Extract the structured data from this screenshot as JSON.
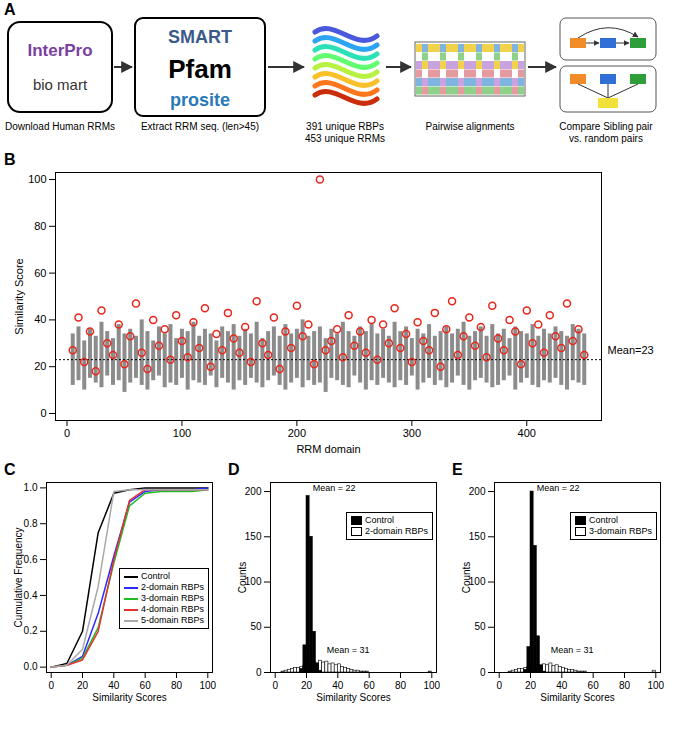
{
  "diagram": {
    "label": "A",
    "steps": [
      {
        "logos": [
          "InterPro",
          "bio mart"
        ],
        "caption": [
          "Download Human RRMs"
        ]
      },
      {
        "logos": [
          "SMART",
          "Pfam",
          "prosite"
        ],
        "caption": [
          "Extract RRM seq. (len>45)"
        ]
      },
      {
        "caption": [
          "391 unique RBPs",
          "453 unique RRMs"
        ]
      },
      {
        "caption": [
          "Pairwise alignments"
        ]
      },
      {
        "caption": [
          "Compare Sibling pair",
          "vs. random pairs"
        ]
      }
    ]
  },
  "chart_data": [
    {
      "panel": "B",
      "type": "range",
      "xlabel": "RRM domain",
      "ylabel": "Similarity Score",
      "xlim": [
        -10,
        465
      ],
      "xticks": [
        0,
        100,
        200,
        300,
        400
      ],
      "ylim": [
        -3,
        103
      ],
      "yticks": [
        0,
        20,
        40,
        60,
        80,
        100
      ],
      "x": [
        5,
        10,
        15,
        20,
        25,
        30,
        35,
        40,
        45,
        50,
        55,
        60,
        65,
        70,
        75,
        80,
        85,
        90,
        95,
        100,
        105,
        110,
        115,
        120,
        125,
        130,
        135,
        140,
        145,
        150,
        155,
        160,
        165,
        170,
        175,
        180,
        185,
        190,
        195,
        200,
        205,
        210,
        215,
        220,
        225,
        230,
        235,
        240,
        245,
        250,
        255,
        260,
        265,
        270,
        275,
        280,
        285,
        290,
        295,
        300,
        305,
        310,
        315,
        320,
        325,
        330,
        335,
        340,
        345,
        350,
        355,
        360,
        365,
        370,
        375,
        380,
        385,
        390,
        395,
        400,
        405,
        410,
        415,
        420,
        425,
        430,
        435,
        440,
        445,
        450
      ],
      "series": [
        {
          "type": "range",
          "color": "#8c8c8c",
          "low": [
            12,
            14,
            10,
            15,
            13,
            11,
            16,
            12,
            14,
            9,
            13,
            15,
            12,
            10,
            14,
            16,
            11,
            13,
            12,
            15,
            10,
            14,
            13,
            12,
            16,
            11,
            15,
            13,
            10,
            14,
            12,
            15,
            13,
            11,
            14,
            16,
            12,
            10,
            13,
            15,
            11,
            14,
            12,
            13,
            9,
            15,
            14,
            12,
            11,
            16,
            13,
            10,
            14,
            12,
            15,
            13,
            11,
            14,
            12,
            16,
            10,
            13,
            15,
            12,
            14,
            11,
            13,
            16,
            12,
            10,
            14,
            15,
            13,
            11,
            12,
            14,
            16,
            10,
            13,
            15,
            12,
            11,
            14,
            13,
            15,
            12,
            10,
            14,
            13,
            12
          ],
          "high": [
            34,
            37,
            31,
            36,
            33,
            39,
            35,
            32,
            38,
            34,
            36,
            33,
            40,
            35,
            31,
            37,
            34,
            38,
            32,
            36,
            35,
            39,
            33,
            36,
            34,
            31,
            37,
            35,
            38,
            33,
            36,
            34,
            39,
            32,
            35,
            37,
            33,
            38,
            34,
            36,
            40,
            33,
            35,
            37,
            32,
            36,
            34,
            39,
            35,
            33,
            37,
            35,
            38,
            34,
            36,
            33,
            39,
            35,
            37,
            32,
            36,
            34,
            38,
            33,
            35,
            37,
            34,
            36,
            39,
            33,
            35,
            37,
            33,
            38,
            34,
            36,
            32,
            37,
            35,
            34,
            38,
            33,
            36,
            34,
            37,
            35,
            33,
            38,
            36,
            34
          ]
        },
        {
          "type": "scatter",
          "marker": "circle",
          "color": "#e8261c",
          "values": [
            27,
            41,
            22,
            35,
            18,
            44,
            30,
            25,
            38,
            21,
            33,
            47,
            26,
            19,
            40,
            29,
            36,
            23,
            42,
            31,
            24,
            39,
            28,
            45,
            20,
            34,
            27,
            43,
            32,
            26,
            37,
            22,
            48,
            30,
            25,
            41,
            19,
            35,
            28,
            46,
            33,
            38,
            21,
            100,
            27,
            31,
            36,
            24,
            42,
            29,
            35,
            26,
            40,
            23,
            38,
            30,
            45,
            28,
            34,
            22,
            39,
            31,
            27,
            43,
            20,
            36,
            48,
            25,
            33,
            41,
            29,
            37,
            24,
            46,
            32,
            27,
            40,
            35,
            21,
            44,
            30,
            38,
            26,
            42,
            33,
            28,
            47,
            31,
            36,
            25
          ]
        }
      ],
      "mean": {
        "value": 23,
        "label": "Mean=23"
      }
    },
    {
      "panel": "C",
      "type": "line",
      "xlabel": "Similarity Scores",
      "ylabel": "Cumulative Frequency",
      "xlim": [
        -3,
        103
      ],
      "xticks": [
        0,
        20,
        40,
        60,
        80,
        100
      ],
      "ylim": [
        -0.03,
        1.03
      ],
      "yticks": [
        {
          "value": 0,
          "label": "0.0"
        },
        {
          "value": 0.2,
          "label": "0.2"
        },
        {
          "value": 0.4,
          "label": "0.4"
        },
        {
          "value": 0.6,
          "label": "0.6"
        },
        {
          "value": 0.8,
          "label": "0.8"
        },
        {
          "value": 1,
          "label": "1.0"
        }
      ],
      "legend": "right",
      "x": [
        0,
        10,
        20,
        30,
        40,
        50,
        60,
        70,
        80,
        90,
        100
      ],
      "series": [
        {
          "name": "Control",
          "color": "#000000",
          "values": [
            0,
            0.02,
            0.2,
            0.75,
            0.97,
            0.99,
            1,
            1,
            1,
            1,
            1
          ]
        },
        {
          "name": "2-domain RBPs",
          "color": "#2b2bff",
          "values": [
            0,
            0.01,
            0.06,
            0.3,
            0.62,
            0.92,
            0.98,
            0.99,
            0.99,
            0.99,
            1
          ]
        },
        {
          "name": "3-domain RBPs",
          "color": "#22bb22",
          "values": [
            0,
            0.01,
            0.05,
            0.22,
            0.58,
            0.9,
            0.97,
            0.98,
            0.98,
            0.98,
            0.99
          ]
        },
        {
          "name": "4-domain RBPs",
          "color": "#e83030",
          "values": [
            0,
            0.01,
            0.04,
            0.2,
            0.6,
            0.93,
            0.99,
            0.99,
            0.99,
            0.99,
            0.99
          ]
        },
        {
          "name": "5-domain RBPs",
          "color": "#aaaaaa",
          "values": [
            0,
            0.01,
            0.1,
            0.45,
            0.98,
            0.99,
            0.99,
            0.99,
            0.99,
            0.99,
            0.99
          ]
        }
      ]
    },
    {
      "panel": "D",
      "type": "histogram",
      "xlabel": "Similarity Scores",
      "ylabel": "Counts",
      "xlim": [
        -3,
        103
      ],
      "xticks": [
        0,
        20,
        40,
        60,
        80,
        100
      ],
      "ylim": [
        0,
        210
      ],
      "yticks": [
        0,
        50,
        100,
        150,
        200
      ],
      "legend": "top-right",
      "bins": [
        0,
        2,
        4,
        6,
        8,
        10,
        12,
        14,
        16,
        18,
        20,
        22,
        24,
        26,
        28,
        30,
        32,
        34,
        36,
        38,
        40,
        42,
        44,
        46,
        48,
        50,
        52,
        54,
        56,
        58,
        60,
        62,
        64,
        66,
        68,
        70,
        72,
        74,
        76,
        78,
        80,
        82,
        84,
        86,
        88,
        90,
        92,
        94,
        96,
        98,
        100
      ],
      "series": [
        {
          "name": "Control",
          "color": "#000000",
          "values": [
            0,
            0,
            0,
            0,
            0,
            0,
            0,
            0,
            4,
            30,
            195,
            150,
            45,
            10,
            2,
            0,
            0,
            0,
            0,
            0,
            0,
            0,
            0,
            0,
            0,
            0,
            0,
            0,
            0,
            0,
            0,
            0,
            0,
            0,
            0,
            0,
            0,
            0,
            0,
            0,
            0,
            0,
            0,
            0,
            0,
            0,
            0,
            0,
            0,
            0
          ]
        },
        {
          "name": "2-domain RBPs",
          "color": "#ffffff",
          "values": [
            0,
            0,
            1,
            2,
            3,
            4,
            5,
            5,
            6,
            8,
            10,
            9,
            12,
            10,
            13,
            11,
            12,
            9,
            10,
            8,
            9,
            6,
            5,
            4,
            3,
            2,
            2,
            1,
            1,
            1,
            0,
            0,
            0,
            0,
            0,
            0,
            0,
            0,
            0,
            0,
            0,
            0,
            0,
            0,
            0,
            0,
            0,
            0,
            0,
            1
          ]
        }
      ],
      "annotations": [
        {
          "text": "Mean = 22",
          "x": 22,
          "y": 200
        },
        {
          "text": "Mean = 31",
          "x": 31,
          "y": 20
        }
      ]
    },
    {
      "panel": "E",
      "type": "histogram",
      "xlabel": "Similarity Scores",
      "ylabel": "Counts",
      "xlim": [
        -3,
        103
      ],
      "xticks": [
        0,
        20,
        40,
        60,
        80,
        100
      ],
      "ylim": [
        0,
        210
      ],
      "yticks": [
        0,
        50,
        100,
        150,
        200
      ],
      "legend": "top-right",
      "bins": [
        0,
        2,
        4,
        6,
        8,
        10,
        12,
        14,
        16,
        18,
        20,
        22,
        24,
        26,
        28,
        30,
        32,
        34,
        36,
        38,
        40,
        42,
        44,
        46,
        48,
        50,
        52,
        54,
        56,
        58,
        60,
        62,
        64,
        66,
        68,
        70,
        72,
        74,
        76,
        78,
        80,
        82,
        84,
        86,
        88,
        90,
        92,
        94,
        96,
        98,
        100
      ],
      "series": [
        {
          "name": "Control",
          "color": "#000000",
          "values": [
            0,
            0,
            0,
            0,
            0,
            0,
            0,
            0,
            3,
            28,
            200,
            140,
            40,
            8,
            1,
            0,
            0,
            0,
            0,
            0,
            0,
            0,
            0,
            0,
            0,
            0,
            0,
            0,
            0,
            0,
            0,
            0,
            0,
            0,
            0,
            0,
            0,
            0,
            0,
            0,
            0,
            0,
            0,
            0,
            0,
            0,
            0,
            0,
            0,
            0
          ]
        },
        {
          "name": "3-domain RBPs",
          "color": "#ffffff",
          "values": [
            0,
            0,
            0,
            1,
            2,
            3,
            4,
            4,
            5,
            6,
            7,
            6,
            8,
            7,
            9,
            8,
            10,
            7,
            8,
            6,
            5,
            4,
            3,
            3,
            2,
            1,
            1,
            1,
            0,
            0,
            0,
            0,
            0,
            0,
            0,
            0,
            0,
            0,
            0,
            0,
            0,
            0,
            0,
            0,
            0,
            0,
            0,
            0,
            0,
            2
          ]
        }
      ],
      "annotations": [
        {
          "text": "Mean = 22",
          "x": 22,
          "y": 200
        },
        {
          "text": "Mean = 31",
          "x": 31,
          "y": 20
        }
      ]
    }
  ]
}
